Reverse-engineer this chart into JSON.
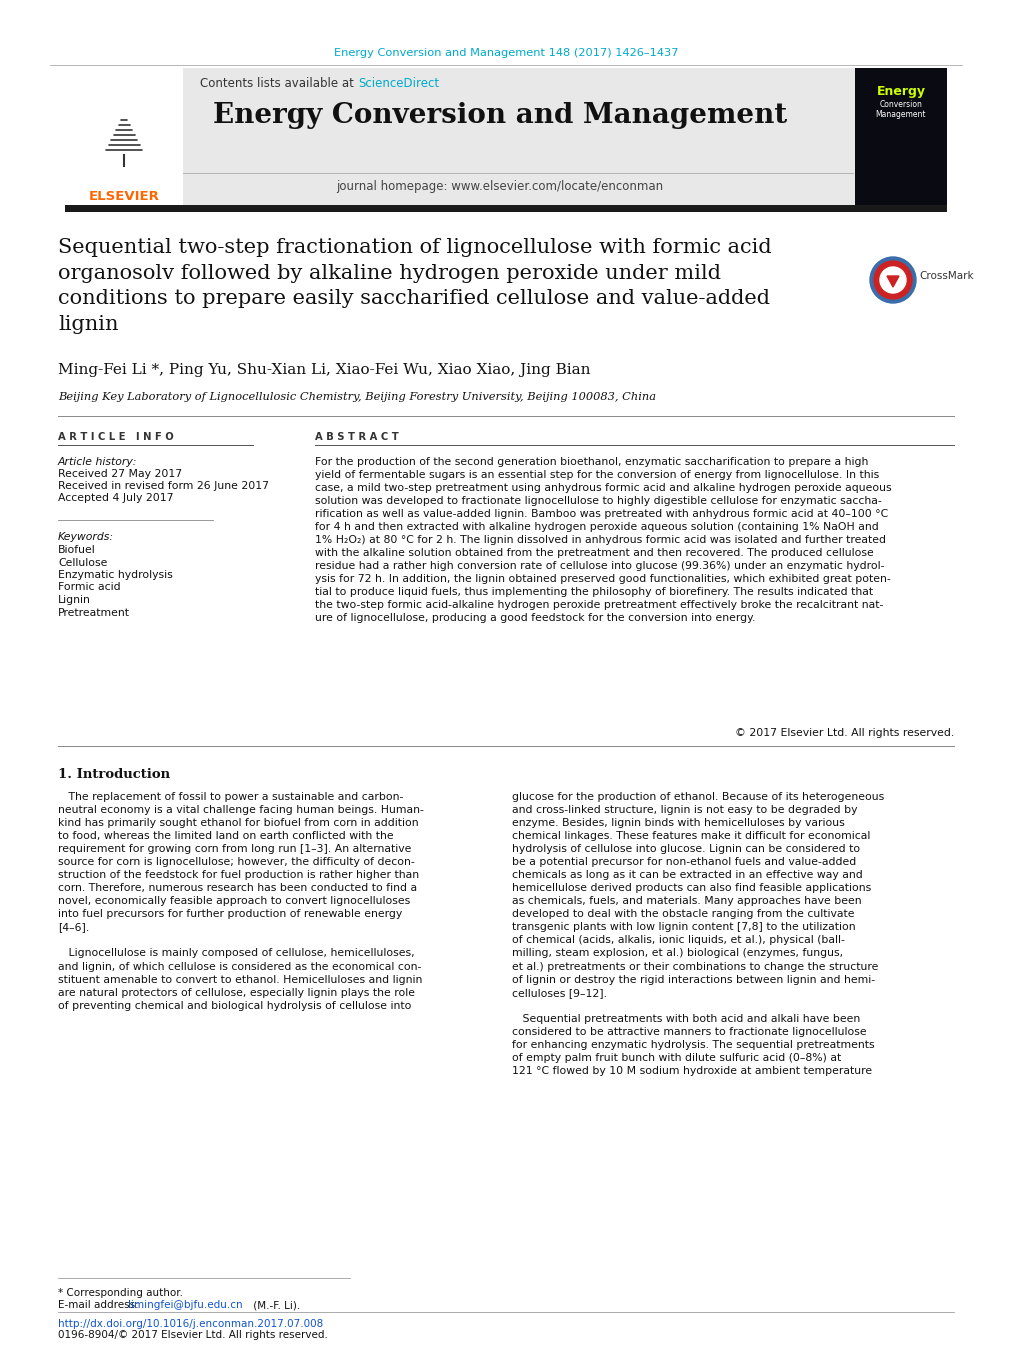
{
  "page_bg": "#ffffff",
  "top_citation": "Energy Conversion and Management 148 (2017) 1426–1437",
  "top_citation_color": "#00aacc",
  "header_bg": "#e8e8e8",
  "header_text1": "Contents lists available at ",
  "header_sciencedirect": "ScienceDirect",
  "header_sciencedirect_color": "#00aacc",
  "journal_name": "Energy Conversion and Management",
  "journal_homepage": "journal homepage: www.elsevier.com/locate/enconman",
  "paper_title": "Sequential two-step fractionation of lignocellulose with formic acid\norganosolv followed by alkaline hydrogen peroxide under mild\nconditions to prepare easily saccharified cellulose and value-added\nlignin",
  "authors": "Ming-Fei Li *, Ping Yu, Shu-Xian Li, Xiao-Fei Wu, Xiao Xiao, Jing Bian",
  "affiliation": "Beijing Key Laboratory of Lignocellulosic Chemistry, Beijing Forestry University, Beijing 100083, China",
  "article_info_header": "A R T I C L E   I N F O",
  "article_history_label": "Article history:",
  "received": "Received 27 May 2017",
  "received_revised": "Received in revised form 26 June 2017",
  "accepted": "Accepted 4 July 2017",
  "keywords_label": "Keywords:",
  "keywords": [
    "Biofuel",
    "Cellulose",
    "Enzymatic hydrolysis",
    "Formic acid",
    "Lignin",
    "Pretreatment"
  ],
  "abstract_header": "A B S T R A C T",
  "abstract_text": "For the production of the second generation bioethanol, enzymatic saccharification to prepare a high\nyield of fermentable sugars is an essential step for the conversion of energy from lignocellulose. In this\ncase, a mild two-step pretreatment using anhydrous formic acid and alkaline hydrogen peroxide aqueous\nsolution was developed to fractionate lignocellulose to highly digestible cellulose for enzymatic saccha-\nrification as well as value-added lignin. Bamboo was pretreated with anhydrous formic acid at 40–100 °C\nfor 4 h and then extracted with alkaline hydrogen peroxide aqueous solution (containing 1% NaOH and\n1% H₂O₂) at 80 °C for 2 h. The lignin dissolved in anhydrous formic acid was isolated and further treated\nwith the alkaline solution obtained from the pretreatment and then recovered. The produced cellulose\nresidue had a rather high conversion rate of cellulose into glucose (99.36%) under an enzymatic hydrol-\nysis for 72 h. In addition, the lignin obtained preserved good functionalities, which exhibited great poten-\ntial to produce liquid fuels, thus implementing the philosophy of biorefinery. The results indicated that\nthe two-step formic acid-alkaline hydrogen peroxide pretreatment effectively broke the recalcitrant nat-\nure of lignocellulose, producing a good feedstock for the conversion into energy.",
  "copyright": "© 2017 Elsevier Ltd. All rights reserved.",
  "intro_header": "1. Introduction",
  "intro_col1_para1": "   The replacement of fossil to power a sustainable and carbon-\nneutral economy is a vital challenge facing human beings. Human-\nkind has primarily sought ethanol for biofuel from corn in addition\nto food, whereas the limited land on earth conflicted with the\nrequirement for growing corn from long run [1–3]. An alternative\nsource for corn is lignocellulose; however, the difficulty of decon-\nstruction of the feedstock for fuel production is rather higher than\ncorn. Therefore, numerous research has been conducted to find a\nnovel, economically feasible approach to convert lignocelluloses\ninto fuel precursors for further production of renewable energy\n[4–6].",
  "intro_col1_para2": "   Lignocellulose is mainly composed of cellulose, hemicelluloses,\nand lignin, of which cellulose is considered as the economical con-\nstituent amenable to convert to ethanol. Hemicelluloses and lignin\nare natural protectors of cellulose, especially lignin plays the role\nof preventing chemical and biological hydrolysis of cellulose into",
  "intro_col2_para1": "glucose for the production of ethanol. Because of its heterogeneous\nand cross-linked structure, lignin is not easy to be degraded by\nenzyme. Besides, lignin binds with hemicelluloses by various\nchemical linkages. These features make it difficult for economical\nhydrolysis of cellulose into glucose. Lignin can be considered to\nbe a potential precursor for non-ethanol fuels and value-added\nchemicals as long as it can be extracted in an effective way and\nhemicellulose derived products can also find feasible applications\nas chemicals, fuels, and materials. Many approaches have been\ndeveloped to deal with the obstacle ranging from the cultivate\ntransgenic plants with low lignin content [7,8] to the utilization\nof chemical (acids, alkalis, ionic liquids, et al.), physical (ball-\nmilling, steam explosion, et al.) biological (enzymes, fungus,\net al.) pretreatments or their combinations to change the structure\nof lignin or destroy the rigid interactions between lignin and hemi-\ncelluloses [9–12].",
  "intro_col2_para2": "   Sequential pretreatments with both acid and alkali have been\nconsidered to be attractive manners to fractionate lignocellulose\nfor enhancing enzymatic hydrolysis. The sequential pretreatments\nof empty palm fruit bunch with dilute sulfuric acid (0–8%) at\n121 °C flowed by 10 M sodium hydroxide at ambient temperature",
  "footer_corresponding": "* Corresponding author.",
  "footer_email_label": "E-mail address: ",
  "footer_email": "limingfei@bjfu.edu.cn",
  "footer_email_suffix": " (M.-F. Li).",
  "footer_doi": "http://dx.doi.org/10.1016/j.enconman.2017.07.008",
  "footer_issn": "0196-8904/© 2017 Elsevier Ltd. All rights reserved.",
  "divider_color": "#555555",
  "black_bar_color": "#1a1a1a"
}
